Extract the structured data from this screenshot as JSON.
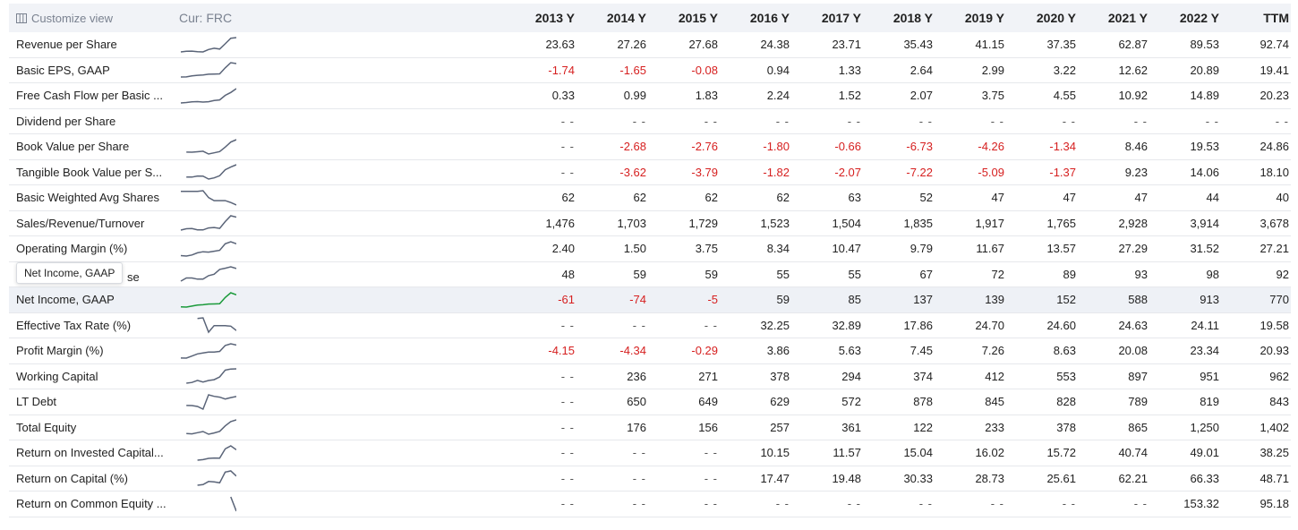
{
  "header": {
    "customize_label": "Customize view",
    "currency_label": "Cur: FRC",
    "columns": [
      "2013 Y",
      "2014 Y",
      "2015 Y",
      "2016 Y",
      "2017 Y",
      "2018 Y",
      "2019 Y",
      "2020 Y",
      "2021 Y",
      "2022 Y",
      "TTM"
    ]
  },
  "tooltip": {
    "text": "Net Income, GAAP",
    "tail": "se"
  },
  "colors": {
    "negative": "#d61f1f",
    "sparkline": "#5a6478",
    "sparkline_highlight": "#1a9a3a",
    "highlight_row": "#eef1f6"
  },
  "rows": [
    {
      "name": "Revenue per Share",
      "values": [
        "23.63",
        "27.26",
        "27.68",
        "24.38",
        "23.71",
        "35.43",
        "41.15",
        "37.35",
        "62.87",
        "89.53",
        "92.74"
      ]
    },
    {
      "name": "Basic EPS, GAAP",
      "values": [
        "-1.74",
        "-1.65",
        "-0.08",
        "0.94",
        "1.33",
        "2.64",
        "2.99",
        "3.22",
        "12.62",
        "20.89",
        "19.41"
      ]
    },
    {
      "name": "Free Cash Flow per Basic ...",
      "values": [
        "0.33",
        "0.99",
        "1.83",
        "2.24",
        "1.52",
        "2.07",
        "3.75",
        "4.55",
        "10.92",
        "14.89",
        "20.23"
      ]
    },
    {
      "name": "Dividend per Share",
      "values": [
        "- -",
        "- -",
        "- -",
        "- -",
        "- -",
        "- -",
        "- -",
        "- -",
        "- -",
        "- -",
        "- -"
      ]
    },
    {
      "name": "Book Value per Share",
      "values": [
        "- -",
        "-2.68",
        "-2.76",
        "-1.80",
        "-0.66",
        "-6.73",
        "-4.26",
        "-1.34",
        "8.46",
        "19.53",
        "24.86"
      ]
    },
    {
      "name": "Tangible Book Value per S...",
      "values": [
        "- -",
        "-3.62",
        "-3.79",
        "-1.82",
        "-2.07",
        "-7.22",
        "-5.09",
        "-1.37",
        "9.23",
        "14.06",
        "18.10"
      ]
    },
    {
      "name": "Basic Weighted Avg Shares",
      "values": [
        "62",
        "62",
        "62",
        "62",
        "63",
        "52",
        "47",
        "47",
        "47",
        "44",
        "40"
      ]
    },
    {
      "name": "Sales/Revenue/Turnover",
      "values": [
        "1,476",
        "1,703",
        "1,729",
        "1,523",
        "1,504",
        "1,835",
        "1,917",
        "1,765",
        "2,928",
        "3,914",
        "3,678"
      ]
    },
    {
      "name": "Operating Margin (%)",
      "values": [
        "2.40",
        "1.50",
        "3.75",
        "8.34",
        "10.47",
        "9.79",
        "11.67",
        "13.57",
        "27.29",
        "31.52",
        "27.21"
      ]
    },
    {
      "name": "Net Income, GAAP",
      "values": [
        "48",
        "59",
        "59",
        "55",
        "55",
        "67",
        "72",
        "89",
        "93",
        "98",
        "92"
      ]
    },
    {
      "name": "Net Income, GAAP",
      "values": [
        "-61",
        "-74",
        "-5",
        "59",
        "85",
        "137",
        "139",
        "152",
        "588",
        "913",
        "770"
      ],
      "highlight": true
    },
    {
      "name": "Effective Tax Rate (%)",
      "values": [
        "- -",
        "- -",
        "- -",
        "32.25",
        "32.89",
        "17.86",
        "24.70",
        "24.60",
        "24.63",
        "24.11",
        "19.58"
      ]
    },
    {
      "name": "Profit Margin (%)",
      "values": [
        "-4.15",
        "-4.34",
        "-0.29",
        "3.86",
        "5.63",
        "7.45",
        "7.26",
        "8.63",
        "20.08",
        "23.34",
        "20.93"
      ]
    },
    {
      "name": "Working Capital",
      "values": [
        "- -",
        "236",
        "271",
        "378",
        "294",
        "374",
        "412",
        "553",
        "897",
        "951",
        "962"
      ]
    },
    {
      "name": "LT Debt",
      "values": [
        "- -",
        "650",
        "649",
        "629",
        "572",
        "878",
        "845",
        "828",
        "789",
        "819",
        "843"
      ]
    },
    {
      "name": "Total Equity",
      "values": [
        "- -",
        "176",
        "156",
        "257",
        "361",
        "122",
        "233",
        "378",
        "865",
        "1,250",
        "1,402"
      ]
    },
    {
      "name": "Return on Invested Capital...",
      "values": [
        "- -",
        "- -",
        "- -",
        "10.15",
        "11.57",
        "15.04",
        "16.02",
        "15.72",
        "40.74",
        "49.01",
        "38.25"
      ]
    },
    {
      "name": "Return on Capital (%)",
      "values": [
        "- -",
        "- -",
        "- -",
        "17.47",
        "19.48",
        "30.33",
        "28.73",
        "25.61",
        "62.21",
        "66.33",
        "48.71"
      ]
    },
    {
      "name": "Return on Common Equity ...",
      "values": [
        "- -",
        "- -",
        "- -",
        "- -",
        "- -",
        "- -",
        "- -",
        "- -",
        "- -",
        "153.32",
        "95.18"
      ]
    }
  ]
}
